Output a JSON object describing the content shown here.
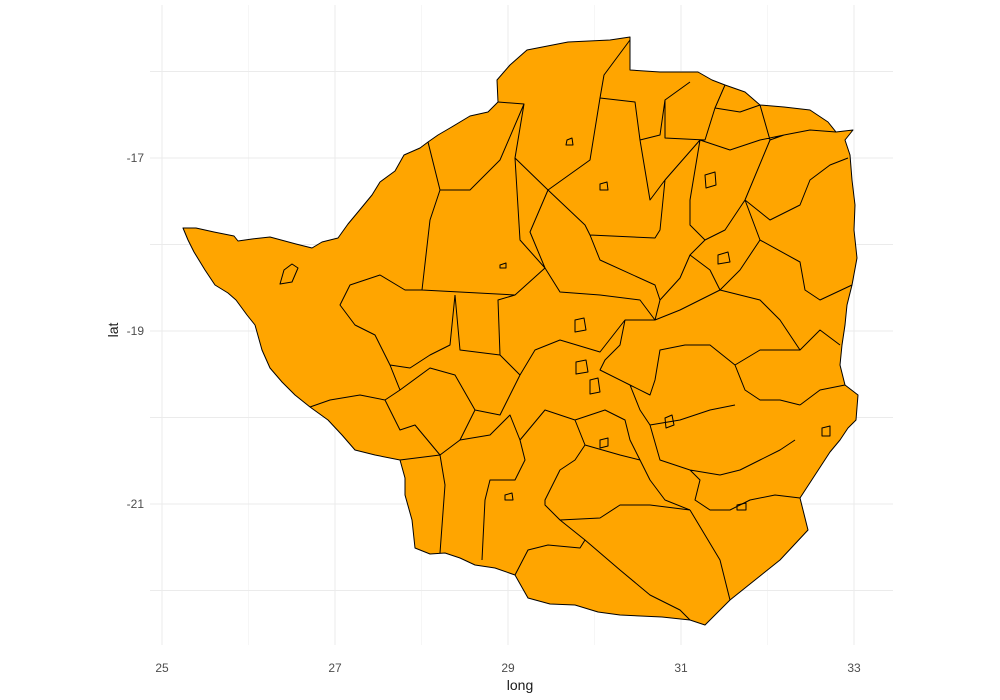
{
  "chart_data": {
    "type": "map",
    "xlabel": "long",
    "ylabel": "lat",
    "xlim": [
      24.9,
      33.5
    ],
    "ylim": [
      -22.6,
      -15.6
    ],
    "x_ticks": [
      25,
      27,
      29,
      31,
      33
    ],
    "y_ticks": [
      -17,
      -19,
      -21
    ],
    "x_tick_labels": [
      "25",
      "27",
      "29",
      "31",
      "33"
    ],
    "y_tick_labels": [
      "-17",
      "-19",
      "-21"
    ],
    "fill_color": "#FFA500",
    "border_color": "#000000",
    "grid": true,
    "theme": "minimal"
  }
}
